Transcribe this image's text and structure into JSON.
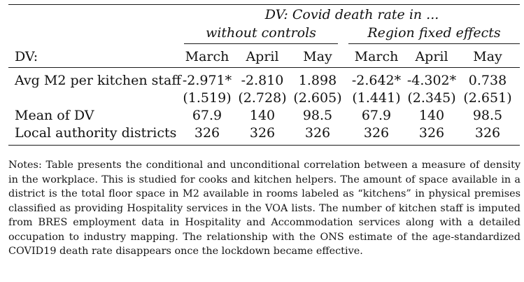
{
  "table": {
    "header": {
      "dv_title": "DV: Covid death rate in ...",
      "group_labels": [
        "without controls",
        "Region fixed effects"
      ],
      "row_header": "DV:",
      "months": [
        "March",
        "April",
        "May",
        "March",
        "April",
        "May"
      ]
    },
    "rows": [
      {
        "label": "Avg M2 per kitchen staff",
        "values": [
          "-2.971*",
          "-2.810",
          "1.898",
          "-2.642*",
          "-4.302*",
          "0.738"
        ],
        "se": [
          "(1.519)",
          "(2.728)",
          "(2.605)",
          "(1.441)",
          "(2.345)",
          "(2.651)"
        ]
      },
      {
        "label": "Mean of DV",
        "values": [
          "67.9",
          "140",
          "98.5",
          "67.9",
          "140",
          "98.5"
        ]
      },
      {
        "label": "Local authority districts",
        "values": [
          "326",
          "326",
          "326",
          "326",
          "326",
          "326"
        ]
      }
    ]
  },
  "notes": "Notes: Table presents the conditional and unconditional correlation between a measure of density in the workplace. This is studied for cooks and kitchen helpers. The amount of space available in a district is the total floor space in M2 available in rooms labeled as “kitchens” in physical premises classified as providing Hospitality services in the VOA lists. The number of kitchen staff is imputed from BRES employment data in Hospitality and Accommodation services along with a detailed occupation to industry mapping. The relationship with the ONS estimate of the age-standardized COVID19 death rate disappears once the lockdown became effective."
}
